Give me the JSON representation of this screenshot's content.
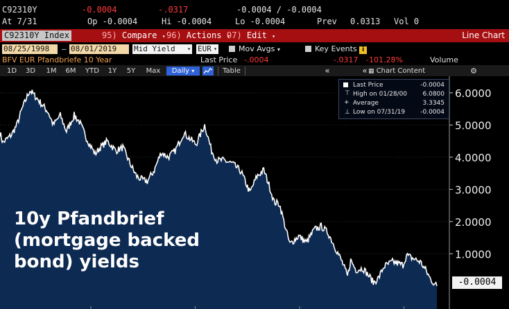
{
  "quote": {
    "ticker": "C92310Y",
    "change": "-0.0004",
    "pct_change": "-.0317",
    "bid_ask": "-0.0004 / -0.0004",
    "date": "At 7/31",
    "open": "Op -0.0004",
    "high": "Hi -0.0004",
    "low": "Lo -0.0004",
    "prev_label": "Prev",
    "prev_value": "0.0313",
    "volume": "Vol 0"
  },
  "toolbar": {
    "index_label": "C92310Y Index",
    "compare_num": "95)",
    "compare_label": "Compare",
    "actions_num": "96)",
    "actions_label": "Actions",
    "edit_num": "97)",
    "edit_label": "Edit",
    "view_title": "Line Chart"
  },
  "fields": {
    "start_date": "08/25/1998",
    "end_date": "08/01/2019",
    "price_field": "Mid Yield",
    "currency": "EUR",
    "mov_avgs": "Mov Avgs",
    "key_events": "Key Events"
  },
  "info": {
    "security_name": "BFV EUR Pfandbriefe 10 Year",
    "last_price_label": "Last Price",
    "last_price_value": "-.0004",
    "change_value": "-.0317",
    "pct_value": "-101.28%",
    "volume_label": "Volume"
  },
  "periods": {
    "items": [
      "1D",
      "3D",
      "1M",
      "6M",
      "YTD",
      "1Y",
      "5Y",
      "Max"
    ],
    "frequency": "Daily",
    "table_label": "Table",
    "chart_content_label": "Chart Content"
  },
  "legend": {
    "last_price_label": "Last Price",
    "last_price_value": "-0.0004",
    "high_label": "High on 01/28/00",
    "high_value": "6.0800",
    "average_label": "Average",
    "average_value": "3.3345",
    "low_label": "Low on 07/31/19",
    "low_value": "-0.0004"
  },
  "caption": "10y Pfandbrief (mortgage backed bond) yields",
  "last_tag": "-0.0004",
  "colors": {
    "command_bar": "#a50f12",
    "area_fill": "#0d2a52",
    "line": "#ffffff",
    "accent_red": "#ff3b3b",
    "period_selected": "#2f62d6"
  },
  "chart_data": {
    "type": "area",
    "series": [
      {
        "name": "Last Price",
        "x": [
          "1998-08-25",
          "1998-10-15",
          "1999-01-15",
          "1999-03-15",
          "1999-06-15",
          "1999-09-15",
          "2000-01-28",
          "2000-06-15",
          "2000-12-15",
          "2001-03-15",
          "2001-07-15",
          "2001-11-01",
          "2002-03-15",
          "2002-06-15",
          "2002-10-15",
          "2003-03-15",
          "2003-06-15",
          "2003-10-15",
          "2004-03-15",
          "2004-07-15",
          "2004-12-15",
          "2005-03-15",
          "2005-06-15",
          "2005-09-15",
          "2006-01-15",
          "2006-05-15",
          "2006-09-15",
          "2007-01-15",
          "2007-06-15",
          "2007-09-15",
          "2008-01-15",
          "2008-06-15",
          "2008-10-15",
          "2009-01-15",
          "2009-05-15",
          "2009-10-15",
          "2010-03-15",
          "2010-08-15",
          "2010-12-15",
          "2011-04-15",
          "2011-07-15",
          "2011-10-15",
          "2012-01-15",
          "2012-05-15",
          "2012-07-15",
          "2012-12-15",
          "2013-05-01",
          "2013-09-15",
          "2014-01-15",
          "2014-05-15",
          "2014-09-15",
          "2015-01-15",
          "2015-04-20",
          "2015-06-15",
          "2015-09-15",
          "2016-01-15",
          "2016-06-15",
          "2016-07-15",
          "2016-10-15",
          "2017-01-15",
          "2017-06-15",
          "2017-12-15",
          "2018-02-15",
          "2018-06-15",
          "2018-10-15",
          "2019-01-15",
          "2019-04-15",
          "2019-08-01"
        ],
        "values": [
          4.75,
          4.45,
          4.6,
          4.7,
          5.0,
          5.5,
          6.08,
          5.8,
          5.4,
          5.0,
          5.3,
          4.8,
          5.3,
          5.1,
          4.6,
          4.1,
          4.3,
          4.5,
          4.2,
          4.3,
          3.7,
          3.4,
          3.3,
          3.25,
          3.6,
          4.15,
          4.0,
          4.2,
          4.75,
          4.6,
          4.4,
          5.0,
          4.2,
          3.9,
          3.9,
          3.8,
          3.55,
          2.9,
          3.4,
          3.6,
          3.15,
          2.6,
          2.55,
          1.7,
          1.3,
          1.55,
          1.35,
          1.75,
          1.85,
          1.65,
          1.2,
          0.75,
          0.3,
          0.8,
          0.5,
          0.55,
          0.2,
          0.1,
          0.25,
          0.6,
          0.75,
          0.65,
          0.95,
          0.85,
          0.75,
          0.5,
          0.2,
          -0.0004
        ]
      }
    ],
    "title": "BFV EUR Pfandbriefe 10 Year",
    "xlabel": "",
    "ylabel": "",
    "xlim": [
      "1998-08-25",
      "2019-08-01"
    ],
    "ylim": [
      -0.5,
      6.3
    ],
    "y_ticks": [
      "6.0000",
      "5.0000",
      "4.0000",
      "3.0000",
      "2.0000",
      "1.0000"
    ],
    "grid": true,
    "legend_position": "top-right"
  }
}
